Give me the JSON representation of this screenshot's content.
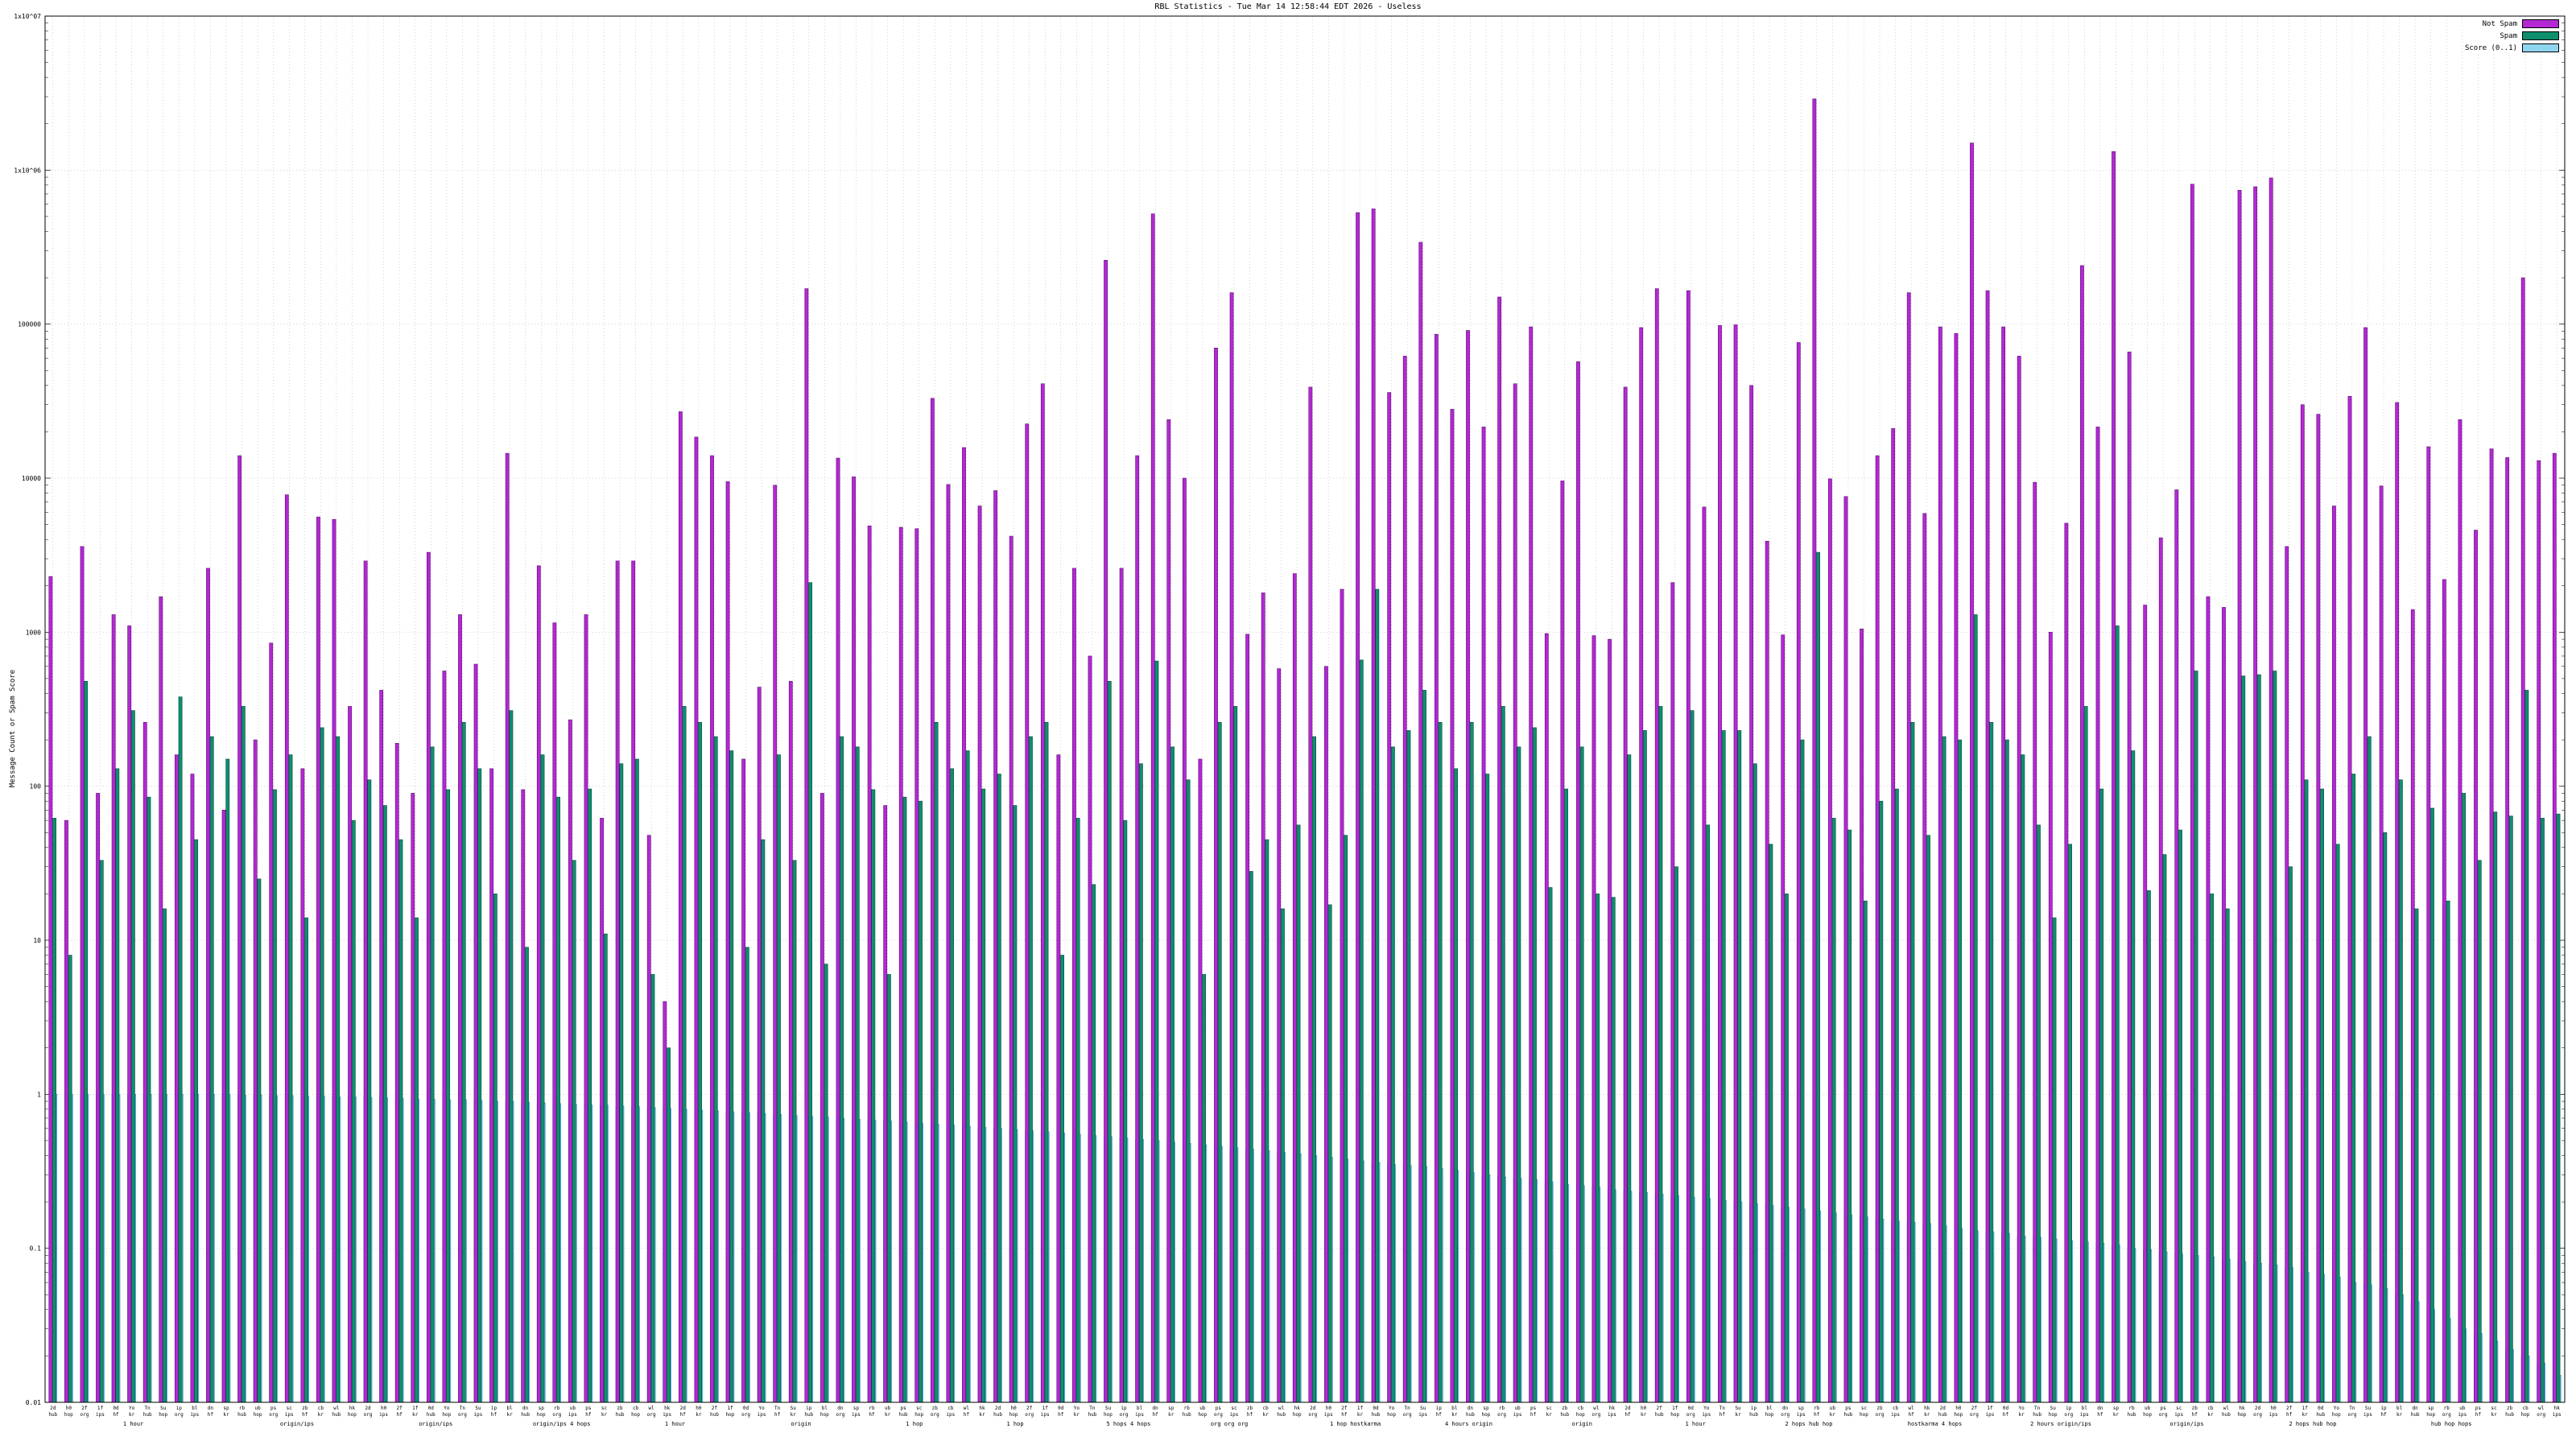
{
  "title": "RBL Statistics - Tue Mar 14 12:58:44 EDT 2026 - Useless",
  "ylabel": "Message Count or Spam Score",
  "legend": [
    {
      "label": "Not Spam",
      "color": "#b428d4"
    },
    {
      "label": "Spam",
      "color": "#0e8f6e"
    },
    {
      "label": "Score (0..1)",
      "color": "#8ed6f0"
    }
  ],
  "chart_data": {
    "type": "bar",
    "title": "RBL Statistics - Tue Mar 14 12:58:44 EDT 2026 - Useless",
    "xlabel": "",
    "ylabel": "Message Count or Spam Score",
    "log_y": true,
    "ylim": [
      0.01,
      10000000
    ],
    "grid": true,
    "legend_position": "top-right",
    "ytick_labels": [
      "0.01",
      "0.1",
      "1",
      "10",
      "100",
      "1000",
      "10000",
      "100000",
      "1x10^06",
      "1x10^07"
    ],
    "bar_tokens": [
      "2d",
      "h0",
      "2f",
      "1f",
      "0d",
      "Yo",
      "Tn",
      "Su",
      "ip",
      "bl",
      "dn",
      "sp",
      "rb",
      "ub",
      "ps",
      "sc",
      "zb",
      "cb",
      "wl",
      "hk"
    ],
    "bar_tokens2": [
      "hub",
      "hop",
      "org",
      "ips",
      "hf",
      "kr"
    ],
    "section_labels": [
      {
        "pos": 0.035,
        "text": "1 hour"
      },
      {
        "pos": 0.1,
        "text": "origin/ips"
      },
      {
        "pos": 0.155,
        "text": "origin/ips"
      },
      {
        "pos": 0.205,
        "text": "origin/ips 4 hops"
      },
      {
        "pos": 0.25,
        "text": "1 hour"
      },
      {
        "pos": 0.3,
        "text": "origin"
      },
      {
        "pos": 0.345,
        "text": "1 hop"
      },
      {
        "pos": 0.385,
        "text": "1 hop"
      },
      {
        "pos": 0.43,
        "text": "5 hops 4 hops"
      },
      {
        "pos": 0.47,
        "text": "org org org"
      },
      {
        "pos": 0.52,
        "text": "1 hop hostkarma"
      },
      {
        "pos": 0.565,
        "text": "4 hours origin"
      },
      {
        "pos": 0.61,
        "text": "origin"
      },
      {
        "pos": 0.655,
        "text": "1 hour"
      },
      {
        "pos": 0.7,
        "text": "2 hops hub hop"
      },
      {
        "pos": 0.75,
        "text": "hostkarma 4 hops"
      },
      {
        "pos": 0.8,
        "text": "2 hours origin/ips"
      },
      {
        "pos": 0.85,
        "text": "origin/ips"
      },
      {
        "pos": 0.9,
        "text": "2 hops hub hop"
      },
      {
        "pos": 0.955,
        "text": "hub hop hops"
      }
    ],
    "series": [
      {
        "name": "Not Spam",
        "color": "#b428d4",
        "border": "#5c0f75",
        "values": [
          2300,
          60,
          3600,
          90,
          1300,
          1100,
          260,
          1700,
          160,
          120,
          2600,
          70,
          14000,
          200,
          850,
          7800,
          130,
          5600,
          5400,
          330,
          2900,
          420,
          190,
          90,
          3300,
          560,
          1300,
          620,
          130,
          14500,
          95,
          2700,
          1150,
          270,
          1300,
          62,
          2900,
          2900,
          48,
          4,
          27000,
          18500,
          14000,
          9500,
          150,
          440,
          9000,
          480,
          170000,
          90,
          13500,
          10200,
          4900,
          75,
          4800,
          4700,
          33000,
          9100,
          15800,
          6600,
          8300,
          4200,
          22500,
          41000,
          160,
          2600,
          700,
          260000,
          2600,
          14000,
          520000,
          24000,
          10000,
          150,
          70000,
          160000,
          970,
          1800,
          580,
          2400,
          39000,
          600,
          1900,
          530000,
          560000,
          36000,
          62000,
          340000,
          86000,
          28000,
          91000,
          21500,
          150000,
          41000,
          96000,
          980,
          9600,
          57000,
          950,
          900,
          39000,
          95000,
          170000,
          2100,
          165000,
          6500,
          98000,
          99000,
          40000,
          3900,
          960,
          76000,
          2900000,
          9900,
          7600,
          1050,
          14000,
          21000,
          160000,
          5900,
          96000,
          87000,
          1500000,
          165000,
          96000,
          62000,
          9400,
          1000,
          5100,
          240000,
          21500,
          1320000,
          66000,
          1500,
          4100,
          8400,
          810000,
          1700,
          1450,
          740000,
          780000,
          890000,
          3600,
          30000,
          26000,
          6600,
          34000,
          95000,
          8900,
          31000,
          1400,
          16000,
          2200,
          24000,
          4600,
          15500,
          13600,
          200000,
          13000,
          14500
        ]
      },
      {
        "name": "Spam",
        "color": "#0e8f6e",
        "border": "#04493a",
        "values": [
          62,
          8,
          480,
          33,
          130,
          310,
          85,
          16,
          380,
          45,
          210,
          150,
          330,
          25,
          95,
          160,
          14,
          240,
          210,
          60,
          110,
          75,
          45,
          14,
          180,
          95,
          260,
          130,
          20,
          310,
          9,
          160,
          85,
          33,
          96,
          11,
          140,
          150,
          6,
          2,
          330,
          260,
          210,
          170,
          9,
          45,
          160,
          33,
          2100,
          7,
          210,
          180,
          95,
          6,
          85,
          80,
          260,
          130,
          170,
          96,
          120,
          75,
          210,
          260,
          8,
          62,
          23,
          480,
          60,
          140,
          650,
          180,
          110,
          6,
          260,
          330,
          28,
          45,
          16,
          56,
          210,
          17,
          48,
          660,
          1900,
          180,
          230,
          420,
          260,
          130,
          260,
          120,
          330,
          180,
          240,
          22,
          96,
          180,
          20,
          19,
          160,
          230,
          330,
          30,
          310,
          56,
          230,
          230,
          140,
          42,
          20,
          200,
          3300,
          62,
          52,
          18,
          80,
          96,
          260,
          48,
          210,
          200,
          1300,
          260,
          200,
          160,
          56,
          14,
          42,
          330,
          96,
          1100,
          170,
          21,
          36,
          52,
          560,
          20,
          16,
          520,
          530,
          560,
          30,
          110,
          96,
          42,
          120,
          210,
          50,
          110,
          16,
          72,
          18,
          90,
          33,
          68,
          64,
          420,
          62,
          66
        ]
      },
      {
        "name": "Score (0..1)",
        "color": "#8ed6f0",
        "border": "#2e8bc0",
        "values": [
          1,
          1,
          1,
          1,
          1,
          1,
          1,
          1,
          1,
          1,
          1,
          1,
          0.99,
          0.99,
          0.98,
          0.98,
          0.97,
          0.97,
          0.96,
          0.96,
          0.95,
          0.95,
          0.94,
          0.93,
          0.93,
          0.92,
          0.92,
          0.91,
          0.9,
          0.9,
          0.89,
          0.88,
          0.87,
          0.86,
          0.85,
          0.85,
          0.84,
          0.83,
          0.82,
          0.81,
          0.8,
          0.79,
          0.78,
          0.77,
          0.76,
          0.75,
          0.74,
          0.73,
          0.72,
          0.71,
          0.7,
          0.69,
          0.68,
          0.67,
          0.66,
          0.65,
          0.64,
          0.63,
          0.62,
          0.61,
          0.6,
          0.59,
          0.58,
          0.57,
          0.56,
          0.55,
          0.54,
          0.53,
          0.52,
          0.51,
          0.5,
          0.49,
          0.48,
          0.47,
          0.46,
          0.45,
          0.44,
          0.43,
          0.42,
          0.41,
          0.4,
          0.39,
          0.38,
          0.37,
          0.36,
          0.35,
          0.345,
          0.34,
          0.33,
          0.32,
          0.31,
          0.3,
          0.29,
          0.285,
          0.28,
          0.27,
          0.26,
          0.255,
          0.25,
          0.24,
          0.235,
          0.23,
          0.225,
          0.22,
          0.215,
          0.21,
          0.205,
          0.2,
          0.195,
          0.19,
          0.185,
          0.18,
          0.175,
          0.17,
          0.165,
          0.16,
          0.155,
          0.15,
          0.148,
          0.145,
          0.14,
          0.135,
          0.13,
          0.128,
          0.125,
          0.12,
          0.118,
          0.115,
          0.112,
          0.11,
          0.108,
          0.105,
          0.1,
          0.098,
          0.095,
          0.092,
          0.09,
          0.088,
          0.085,
          0.082,
          0.08,
          0.078,
          0.075,
          0.07,
          0.068,
          0.065,
          0.06,
          0.058,
          0.055,
          0.05,
          0.045,
          0.04,
          0.035,
          0.03,
          0.028,
          0.025,
          0.022,
          0.02,
          0.018,
          0.015
        ]
      }
    ]
  }
}
